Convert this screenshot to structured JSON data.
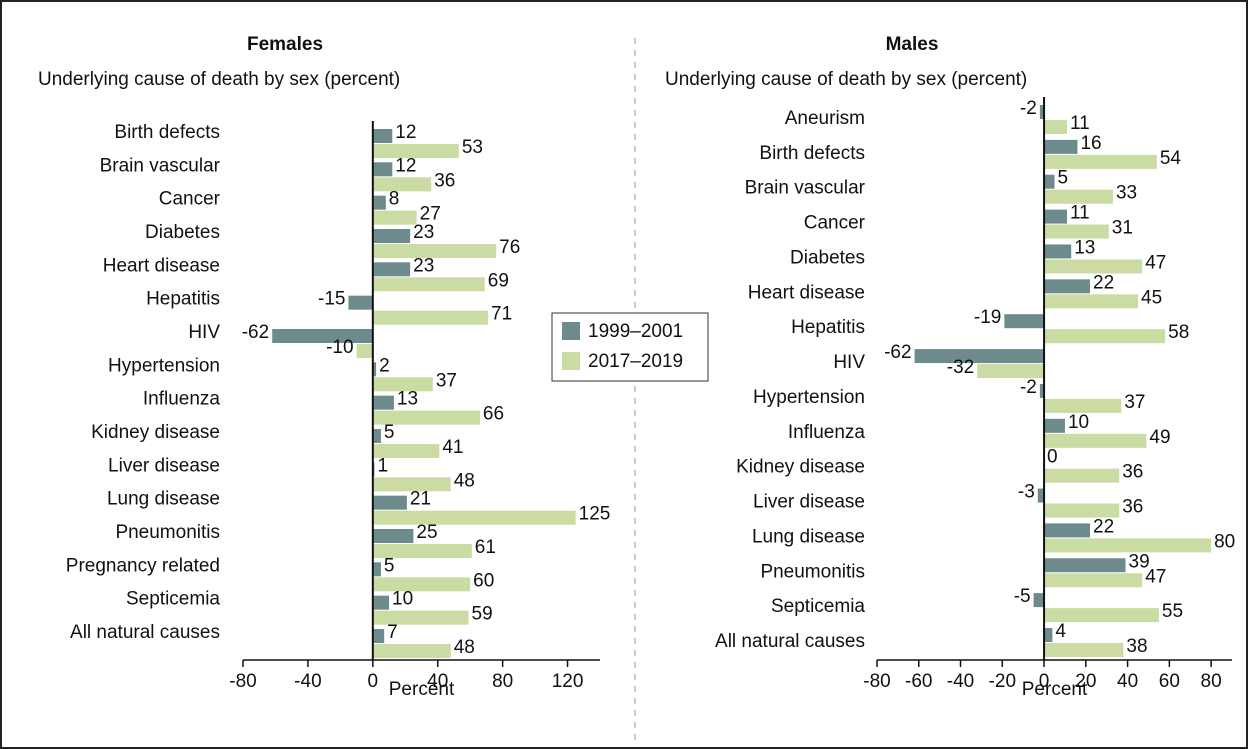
{
  "chart_data": [
    {
      "type": "bar",
      "orientation": "horizontal",
      "title": "Females",
      "subtitle": "Underlying cause of death by sex (percent)",
      "x_label": "Percent",
      "categories": [
        "Birth defects",
        "Brain vascular",
        "Cancer",
        "Diabetes",
        "Heart disease",
        "Hepatitis",
        "HIV",
        "Hypertension",
        "Influenza",
        "Kidney disease",
        "Liver disease",
        "Lung disease",
        "Pneumonitis",
        "Pregnancy related",
        "Septicemia",
        "All natural causes"
      ],
      "series": [
        {
          "name": "1999–2001",
          "color": "#6d8a8c",
          "values": [
            12,
            12,
            8,
            23,
            23,
            -15,
            -62,
            2,
            13,
            5,
            1,
            21,
            25,
            5,
            10,
            7
          ]
        },
        {
          "name": "2017–2019",
          "color": "#cadca3",
          "values": [
            53,
            36,
            27,
            76,
            69,
            71,
            -10,
            37,
            66,
            41,
            48,
            125,
            61,
            60,
            59,
            48
          ]
        }
      ],
      "xlim": [
        -80,
        140
      ],
      "xticks": [
        -80,
        -40,
        0,
        40,
        80,
        120
      ]
    },
    {
      "type": "bar",
      "orientation": "horizontal",
      "title": "Males",
      "subtitle": "Underlying cause of death by sex (percent)",
      "x_label": "Percent",
      "categories": [
        "Aneurism",
        "Birth defects",
        "Brain vascular",
        "Cancer",
        "Diabetes",
        "Heart disease",
        "Hepatitis",
        "HIV",
        "Hypertension",
        "Influenza",
        "Kidney disease",
        "Liver disease",
        "Lung disease",
        "Pneumonitis",
        "Septicemia",
        "All natural causes"
      ],
      "series": [
        {
          "color": "#6d8a8c",
          "values": [
            -2,
            16,
            5,
            11,
            13,
            22,
            -19,
            -62,
            -2,
            10,
            0,
            -3,
            22,
            39,
            -5,
            4
          ]
        },
        {
          "color": "#cadca3",
          "values": [
            11,
            54,
            33,
            31,
            47,
            45,
            58,
            -32,
            37,
            49,
            36,
            36,
            80,
            47,
            55,
            38
          ]
        }
      ],
      "xlim": [
        -80,
        90
      ],
      "xticks": [
        -80,
        -60,
        -40,
        -20,
        0,
        20,
        40,
        60,
        80
      ]
    }
  ]
}
